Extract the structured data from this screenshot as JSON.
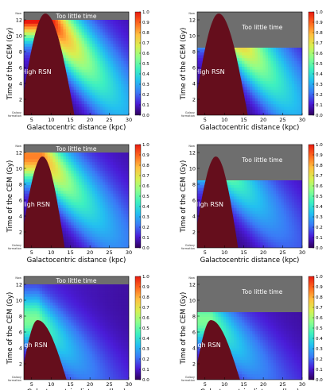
{
  "colors": {
    "grey_region": "#6e6e6e",
    "high_rsn_region": "#650e1c",
    "colormap": [
      "#30005a",
      "#4a1cd8",
      "#3a7bf6",
      "#23c0f0",
      "#3df0c0",
      "#8cff8c",
      "#d8f050",
      "#ffc040",
      "#ff6a20",
      "#e81a10"
    ]
  },
  "chart_data": [
    {
      "type": "heatmap",
      "panel": "top-left",
      "xlabel": "Galactocentric distance (kpc)",
      "ylabel": "Time of the CEM (Gy)",
      "xlim": [
        3,
        30
      ],
      "ylim": [
        0,
        13
      ],
      "xticks": [
        "5",
        "10",
        "15",
        "20",
        "25",
        "30"
      ],
      "yticks": [
        "2",
        "4",
        "6",
        "8",
        "10",
        "12"
      ],
      "ytop_label": "Now",
      "ybottom_label": "Galaxy formation",
      "colorbar_ticks": [
        "0.0",
        "0.1",
        "0.2",
        "0.3",
        "0.4",
        "0.5",
        "0.6",
        "0.7",
        "0.8",
        "0.9",
        "1.0"
      ],
      "too_little_time_label": "Too little time",
      "too_little_time_from": 12.0,
      "high_rsn_label": "High RSN",
      "high_rsn": {
        "r_min": 3,
        "r_peak": 8.5,
        "r_max": 16,
        "t_top": 12.8,
        "t_max_r": 3.0
      },
      "peak_value": 1.0,
      "ridge_slope": 0.55
    },
    {
      "type": "heatmap",
      "panel": "top-right",
      "xlabel": "Galactocentric distance (kpc)",
      "ylabel": "Time of the CEM (Gy)",
      "xlim": [
        3,
        30
      ],
      "ylim": [
        0,
        13
      ],
      "xticks": [
        "5",
        "10",
        "15",
        "20",
        "25",
        "30"
      ],
      "yticks": [
        "2",
        "4",
        "6",
        "8",
        "10",
        "12"
      ],
      "ytop_label": "Now",
      "ybottom_label": "Galaxy formation",
      "colorbar_ticks": [
        "0.0",
        "0.1",
        "0.2",
        "0.3",
        "0.4",
        "0.5",
        "0.6",
        "0.7",
        "0.8",
        "0.9",
        "1.0"
      ],
      "too_little_time_label": "Too little time",
      "too_little_time_from": 8.5,
      "high_rsn_label": "High RSN",
      "high_rsn": {
        "r_min": 3,
        "r_peak": 8.5,
        "r_max": 16,
        "t_top": 12.8,
        "t_max_r": 3.0
      },
      "peak_value": 1.0,
      "ridge_slope": 0.55
    },
    {
      "type": "heatmap",
      "panel": "middle-left",
      "xlabel": "Galactocentric distance (kpc)",
      "ylabel": "Time of the CEM (Gy)",
      "xlim": [
        3,
        30
      ],
      "ylim": [
        0,
        13
      ],
      "xticks": [
        "5",
        "10",
        "15",
        "20",
        "25",
        "30"
      ],
      "yticks": [
        "2",
        "4",
        "6",
        "8",
        "10",
        "12"
      ],
      "ytop_label": "Now",
      "ybottom_label": "Galaxy formation",
      "colorbar_ticks": [
        "0.0",
        "0.1",
        "0.2",
        "0.3",
        "0.4",
        "0.5",
        "0.6",
        "0.7",
        "0.8",
        "0.9",
        "1.0"
      ],
      "too_little_time_label": "Too little time",
      "too_little_time_from": 12.0,
      "high_rsn_label": "High RSN",
      "high_rsn": {
        "r_min": 3,
        "r_peak": 7.8,
        "r_max": 13.5,
        "t_top": 11.5,
        "t_max_r": 3.0
      },
      "peak_value": 0.75,
      "ridge_slope": 0.5
    },
    {
      "type": "heatmap",
      "panel": "middle-right",
      "xlabel": "Galactocentric distance (kpc)",
      "ylabel": "Time of the CEM (Gy)",
      "xlim": [
        3,
        30
      ],
      "ylim": [
        0,
        13
      ],
      "xticks": [
        "5",
        "10",
        "15",
        "20",
        "25",
        "30"
      ],
      "yticks": [
        "2",
        "4",
        "6",
        "8",
        "10",
        "12"
      ],
      "ytop_label": "Now",
      "ybottom_label": "Galaxy formation",
      "colorbar_ticks": [
        "0.0",
        "0.1",
        "0.2",
        "0.3",
        "0.4",
        "0.5",
        "0.6",
        "0.7",
        "0.8",
        "0.9",
        "1.0"
      ],
      "too_little_time_label": "Too little time",
      "too_little_time_from": 8.5,
      "high_rsn_label": "High RSN",
      "high_rsn": {
        "r_min": 3,
        "r_peak": 7.8,
        "r_max": 13.5,
        "t_top": 11.5,
        "t_max_r": 3.0
      },
      "peak_value": 0.55,
      "ridge_slope": 0.5
    },
    {
      "type": "heatmap",
      "panel": "bottom-left",
      "xlabel": "Galactocentric distance (kpc)",
      "ylabel": "Time of the CEM (Gy)",
      "xlim": [
        3,
        30
      ],
      "ylim": [
        0,
        13
      ],
      "xticks": [
        "5",
        "10",
        "15",
        "20",
        "25",
        "30"
      ],
      "yticks": [
        "2",
        "4",
        "6",
        "8",
        "10",
        "12"
      ],
      "ytop_label": "Now",
      "ybottom_label": "Galaxy formation",
      "colorbar_ticks": [
        "0.0",
        "0.1",
        "0.2",
        "0.3",
        "0.4",
        "0.5",
        "0.6",
        "0.7",
        "0.8",
        "0.9",
        "1.0"
      ],
      "too_little_time_label": "Too little time",
      "too_little_time_from": 12.0,
      "high_rsn_label": "High RSN",
      "high_rsn": {
        "r_min": 3,
        "r_peak": 6.5,
        "r_max": 14,
        "t_top": 7.5,
        "t_max_r": 2.0
      },
      "peak_value": 0.45,
      "ridge_slope": 0.45
    },
    {
      "type": "heatmap",
      "panel": "bottom-right",
      "xlabel": "Galactocentric distance (kpc)",
      "ylabel": "Time of the CEM (Gy)",
      "xlim": [
        3,
        30
      ],
      "ylim": [
        0,
        13
      ],
      "xticks": [
        "5",
        "10",
        "15",
        "20",
        "25",
        "30"
      ],
      "yticks": [
        "2",
        "4",
        "6",
        "8",
        "10",
        "12"
      ],
      "ytop_label": "Now",
      "ybottom_label": "Galaxy formation",
      "colorbar_ticks": [
        "0.0",
        "0.1",
        "0.2",
        "0.3",
        "0.4",
        "0.5",
        "0.6",
        "0.7",
        "0.8",
        "0.9",
        "1.0"
      ],
      "too_little_time_label": "Too little time",
      "too_little_time_from": 8.5,
      "high_rsn_label": "High RSN",
      "high_rsn": {
        "r_min": 3,
        "r_peak": 6.5,
        "r_max": 14,
        "t_top": 7.5,
        "t_max_r": 2.0
      },
      "peak_value": 0.45,
      "ridge_slope": 0.45
    }
  ]
}
